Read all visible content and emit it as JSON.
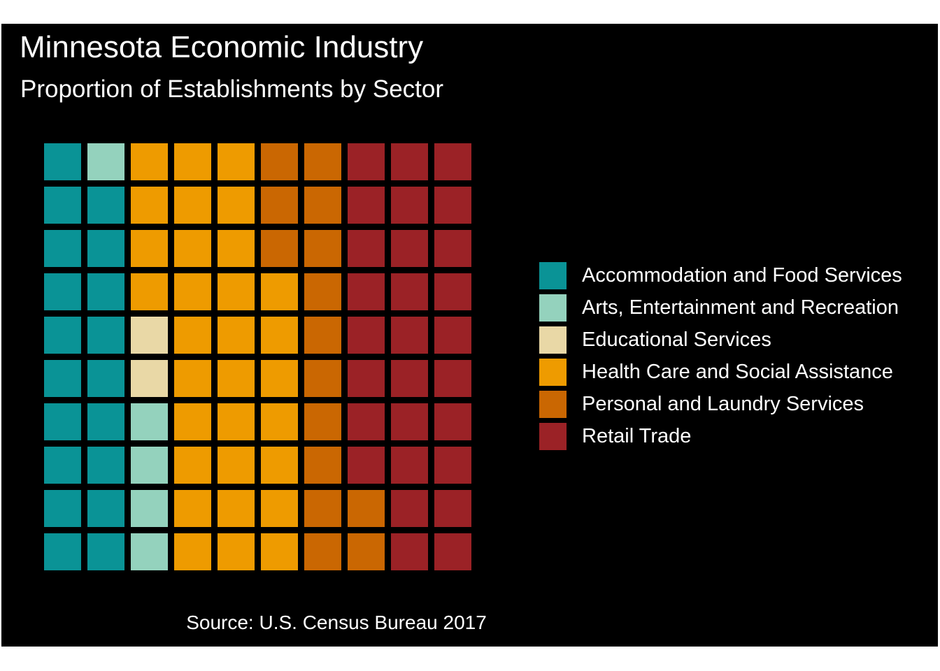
{
  "chart_data": {
    "type": "waffle",
    "title": "Minnesota Economic Industry",
    "subtitle": "Proportion of Establishments by Sector",
    "caption": "Source: U.S. Census Bureau 2017",
    "grid": {
      "rows": 10,
      "cols": 10
    },
    "legend_position": "right",
    "categories": [
      "Accommodation and Food Services",
      "Arts, Entertainment and Recreation",
      "Educational Services",
      "Health Care and Social Assistance",
      "Personal and Laundry Services",
      "Retail Trade"
    ],
    "values": [
      19,
      5,
      2,
      31,
      15,
      28
    ],
    "colors": [
      "#0a9396",
      "#94d2bd",
      "#e9d8a6",
      "#ee9b00",
      "#ca6702",
      "#9b2226"
    ]
  }
}
